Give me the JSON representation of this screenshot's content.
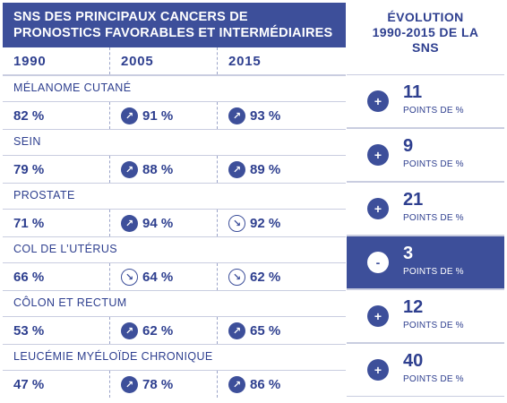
{
  "title": "SNS DES PRINCIPAUX CANCERS DE PRONOSTICS FAVORABLES ET INTERMÉDIAIRES",
  "years": [
    "1990",
    "2005",
    "2015"
  ],
  "evolution_header": "ÉVOLUTION 1990-2015 DE LA SNS",
  "unit": "POINTS DE %",
  "rows": [
    {
      "name": "MÉLANOME CUTANÉ",
      "v1990": "82 %",
      "v2005": "91 %",
      "v2015": "93 %",
      "t2005": "up",
      "t2015": "up",
      "sign": "+",
      "change": "11"
    },
    {
      "name": "SEIN",
      "v1990": "79 %",
      "v2005": "88 %",
      "v2015": "89 %",
      "t2005": "up",
      "t2015": "up",
      "sign": "+",
      "change": "9"
    },
    {
      "name": "PROSTATE",
      "v1990": "71 %",
      "v2005": "94 %",
      "v2015": "92 %",
      "t2005": "up",
      "t2015": "down",
      "sign": "+",
      "change": "21"
    },
    {
      "name": "COL DE L’UTÉRUS",
      "v1990": "66 %",
      "v2005": "64 %",
      "v2015": "62 %",
      "t2005": "down",
      "t2015": "down",
      "sign": "-",
      "change": "3"
    },
    {
      "name": "CÔLON ET RECTUM",
      "v1990": "53 %",
      "v2005": "62 %",
      "v2015": "65 %",
      "t2005": "up",
      "t2015": "up",
      "sign": "+",
      "change": "12"
    },
    {
      "name": "LEUCÉMIE MYÉLOÏDE CHRONIQUE",
      "v1990": "47 %",
      "v2005": "78 %",
      "v2015": "86 %",
      "t2005": "up",
      "t2015": "up",
      "sign": "+",
      "change": "40"
    }
  ],
  "colors": {
    "primary": "#3d4f9a",
    "text": "#2e3f8f",
    "border": "#c9cde0"
  },
  "icons": {
    "up": "arrow-up-right-icon",
    "down": "arrow-down-right-icon"
  }
}
